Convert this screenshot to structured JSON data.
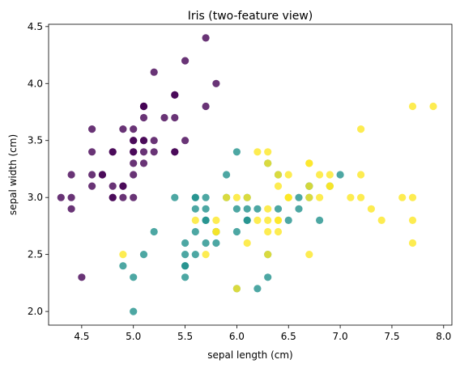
{
  "chart_data": {
    "type": "scatter",
    "title": "Iris (two-feature view)",
    "xlabel": "sepal length (cm)",
    "ylabel": "sepal width (cm)",
    "xlim": [
      4.18,
      8.08
    ],
    "ylim": [
      1.88,
      4.52
    ],
    "xticks": [
      4.5,
      5.0,
      5.5,
      6.0,
      6.5,
      7.0,
      7.5,
      8.0
    ],
    "xtick_labels": [
      "4.5",
      "5.0",
      "5.5",
      "6.0",
      "6.5",
      "7.0",
      "7.5",
      "8.0"
    ],
    "yticks": [
      2.0,
      2.5,
      3.0,
      3.5,
      4.0,
      4.5
    ],
    "ytick_labels": [
      "2.0",
      "2.5",
      "3.0",
      "3.5",
      "4.0",
      "4.5"
    ],
    "grid": false,
    "series": [
      {
        "color": "#440154",
        "points": [
          [
            5.1,
            3.5
          ],
          [
            4.9,
            3.0
          ],
          [
            4.7,
            3.2
          ],
          [
            4.6,
            3.1
          ],
          [
            5.0,
            3.6
          ],
          [
            5.4,
            3.9
          ],
          [
            4.6,
            3.4
          ],
          [
            5.0,
            3.4
          ],
          [
            4.4,
            2.9
          ],
          [
            4.9,
            3.1
          ],
          [
            5.4,
            3.7
          ],
          [
            4.8,
            3.4
          ],
          [
            4.8,
            3.0
          ],
          [
            4.3,
            3.0
          ],
          [
            5.8,
            4.0
          ],
          [
            5.7,
            4.4
          ],
          [
            5.4,
            3.9
          ],
          [
            5.1,
            3.5
          ],
          [
            5.7,
            3.8
          ],
          [
            5.1,
            3.8
          ],
          [
            5.4,
            3.4
          ],
          [
            5.1,
            3.7
          ],
          [
            4.6,
            3.6
          ],
          [
            5.1,
            3.3
          ],
          [
            4.8,
            3.4
          ],
          [
            5.0,
            3.0
          ],
          [
            5.0,
            3.4
          ],
          [
            5.2,
            3.5
          ],
          [
            5.2,
            3.4
          ],
          [
            4.7,
            3.2
          ],
          [
            4.8,
            3.1
          ],
          [
            5.4,
            3.4
          ],
          [
            5.2,
            4.1
          ],
          [
            5.5,
            4.2
          ],
          [
            4.9,
            3.1
          ],
          [
            5.0,
            3.2
          ],
          [
            5.5,
            3.5
          ],
          [
            4.9,
            3.6
          ],
          [
            4.4,
            3.0
          ],
          [
            5.1,
            3.4
          ],
          [
            5.0,
            3.5
          ],
          [
            4.5,
            2.3
          ],
          [
            4.4,
            3.2
          ],
          [
            5.0,
            3.5
          ],
          [
            5.1,
            3.8
          ],
          [
            4.8,
            3.0
          ],
          [
            5.1,
            3.8
          ],
          [
            4.6,
            3.2
          ],
          [
            5.3,
            3.7
          ],
          [
            5.0,
            3.3
          ]
        ]
      },
      {
        "color": "#21918c",
        "points": [
          [
            7.0,
            3.2
          ],
          [
            6.4,
            3.2
          ],
          [
            6.9,
            3.1
          ],
          [
            5.5,
            2.3
          ],
          [
            6.5,
            2.8
          ],
          [
            5.7,
            2.8
          ],
          [
            6.3,
            3.3
          ],
          [
            4.9,
            2.4
          ],
          [
            6.6,
            2.9
          ],
          [
            5.2,
            2.7
          ],
          [
            5.0,
            2.0
          ],
          [
            5.9,
            3.0
          ],
          [
            6.0,
            2.2
          ],
          [
            6.1,
            2.9
          ],
          [
            5.6,
            2.9
          ],
          [
            6.7,
            3.1
          ],
          [
            5.6,
            3.0
          ],
          [
            5.8,
            2.7
          ],
          [
            6.2,
            2.2
          ],
          [
            5.6,
            2.5
          ],
          [
            5.9,
            3.2
          ],
          [
            6.1,
            2.8
          ],
          [
            6.3,
            2.5
          ],
          [
            6.1,
            2.8
          ],
          [
            6.4,
            2.9
          ],
          [
            6.6,
            3.0
          ],
          [
            6.8,
            2.8
          ],
          [
            6.7,
            3.0
          ],
          [
            6.0,
            2.9
          ],
          [
            5.7,
            2.6
          ],
          [
            5.5,
            2.4
          ],
          [
            5.5,
            2.4
          ],
          [
            5.8,
            2.7
          ],
          [
            6.0,
            2.7
          ],
          [
            5.4,
            3.0
          ],
          [
            6.0,
            3.4
          ],
          [
            6.7,
            3.1
          ],
          [
            6.3,
            2.3
          ],
          [
            5.6,
            3.0
          ],
          [
            5.5,
            2.5
          ],
          [
            5.5,
            2.6
          ],
          [
            6.1,
            3.0
          ],
          [
            5.8,
            2.6
          ],
          [
            5.0,
            2.3
          ],
          [
            5.6,
            2.7
          ],
          [
            5.7,
            3.0
          ],
          [
            5.7,
            2.9
          ],
          [
            6.2,
            2.9
          ],
          [
            5.1,
            2.5
          ],
          [
            5.7,
            2.8
          ]
        ]
      },
      {
        "color": "#fde725",
        "points": [
          [
            6.3,
            3.3
          ],
          [
            5.8,
            2.7
          ],
          [
            7.1,
            3.0
          ],
          [
            6.3,
            2.9
          ],
          [
            6.5,
            3.0
          ],
          [
            7.6,
            3.0
          ],
          [
            4.9,
            2.5
          ],
          [
            7.3,
            2.9
          ],
          [
            6.7,
            2.5
          ],
          [
            7.2,
            3.6
          ],
          [
            6.5,
            3.2
          ],
          [
            6.4,
            2.7
          ],
          [
            6.8,
            3.0
          ],
          [
            5.7,
            2.5
          ],
          [
            5.8,
            2.8
          ],
          [
            6.4,
            3.2
          ],
          [
            6.5,
            3.0
          ],
          [
            7.7,
            3.8
          ],
          [
            7.7,
            2.6
          ],
          [
            6.0,
            2.2
          ],
          [
            6.9,
            3.2
          ],
          [
            5.6,
            2.8
          ],
          [
            7.7,
            2.8
          ],
          [
            6.3,
            2.7
          ],
          [
            6.7,
            3.3
          ],
          [
            7.2,
            3.2
          ],
          [
            6.2,
            2.8
          ],
          [
            6.1,
            3.0
          ],
          [
            6.4,
            2.8
          ],
          [
            7.2,
            3.0
          ],
          [
            7.4,
            2.8
          ],
          [
            7.9,
            3.8
          ],
          [
            6.4,
            2.8
          ],
          [
            6.3,
            2.8
          ],
          [
            6.1,
            2.6
          ],
          [
            7.7,
            3.0
          ],
          [
            6.3,
            3.4
          ],
          [
            6.4,
            3.1
          ],
          [
            6.0,
            3.0
          ],
          [
            6.9,
            3.1
          ],
          [
            6.7,
            3.1
          ],
          [
            6.9,
            3.1
          ],
          [
            5.8,
            2.7
          ],
          [
            6.8,
            3.2
          ],
          [
            6.7,
            3.3
          ],
          [
            6.7,
            3.0
          ],
          [
            6.3,
            2.5
          ],
          [
            6.5,
            3.0
          ],
          [
            6.2,
            3.4
          ],
          [
            5.9,
            3.0
          ]
        ]
      }
    ]
  }
}
